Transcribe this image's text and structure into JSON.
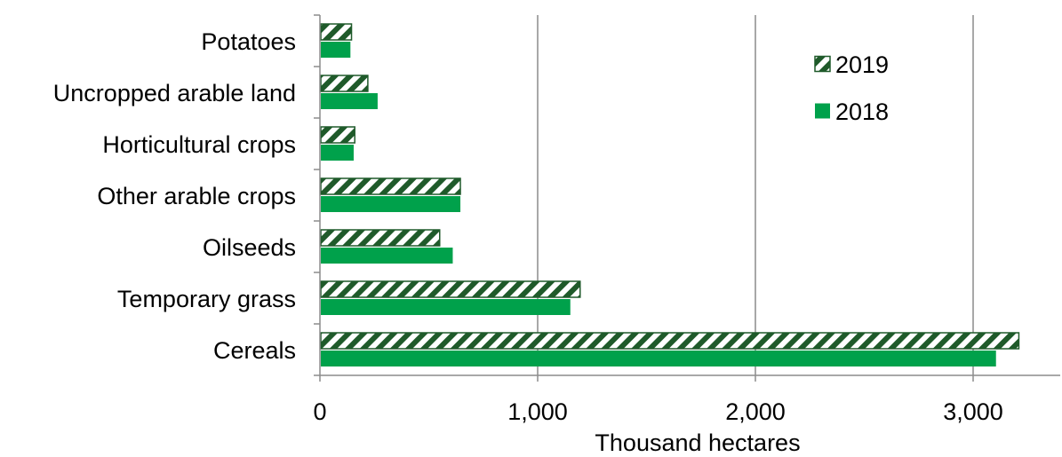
{
  "chart_data": {
    "type": "bar",
    "orientation": "horizontal",
    "categories": [
      "Potatoes",
      "Uncropped arable land",
      "Horticultural crops",
      "Other arable crops",
      "Oilseeds",
      "Temporary grass",
      "Cereals"
    ],
    "series": [
      {
        "name": "2019",
        "values": [
          145,
          220,
          160,
          645,
          550,
          1195,
          3210
        ],
        "color": "#1f5a2a",
        "pattern": "diagonal-hatch"
      },
      {
        "name": "2018",
        "values": [
          140,
          265,
          155,
          645,
          610,
          1150,
          3105
        ],
        "color": "#00a14b",
        "pattern": "solid"
      }
    ],
    "xlabel": "Thousand hectares",
    "xlim": [
      0,
      3400
    ],
    "xticks": [
      0,
      1000,
      2000,
      3000
    ],
    "xtick_labels": [
      "0",
      "1,000",
      "2,000",
      "3,000"
    ],
    "grid": "vertical",
    "legend_position": "top-right"
  }
}
